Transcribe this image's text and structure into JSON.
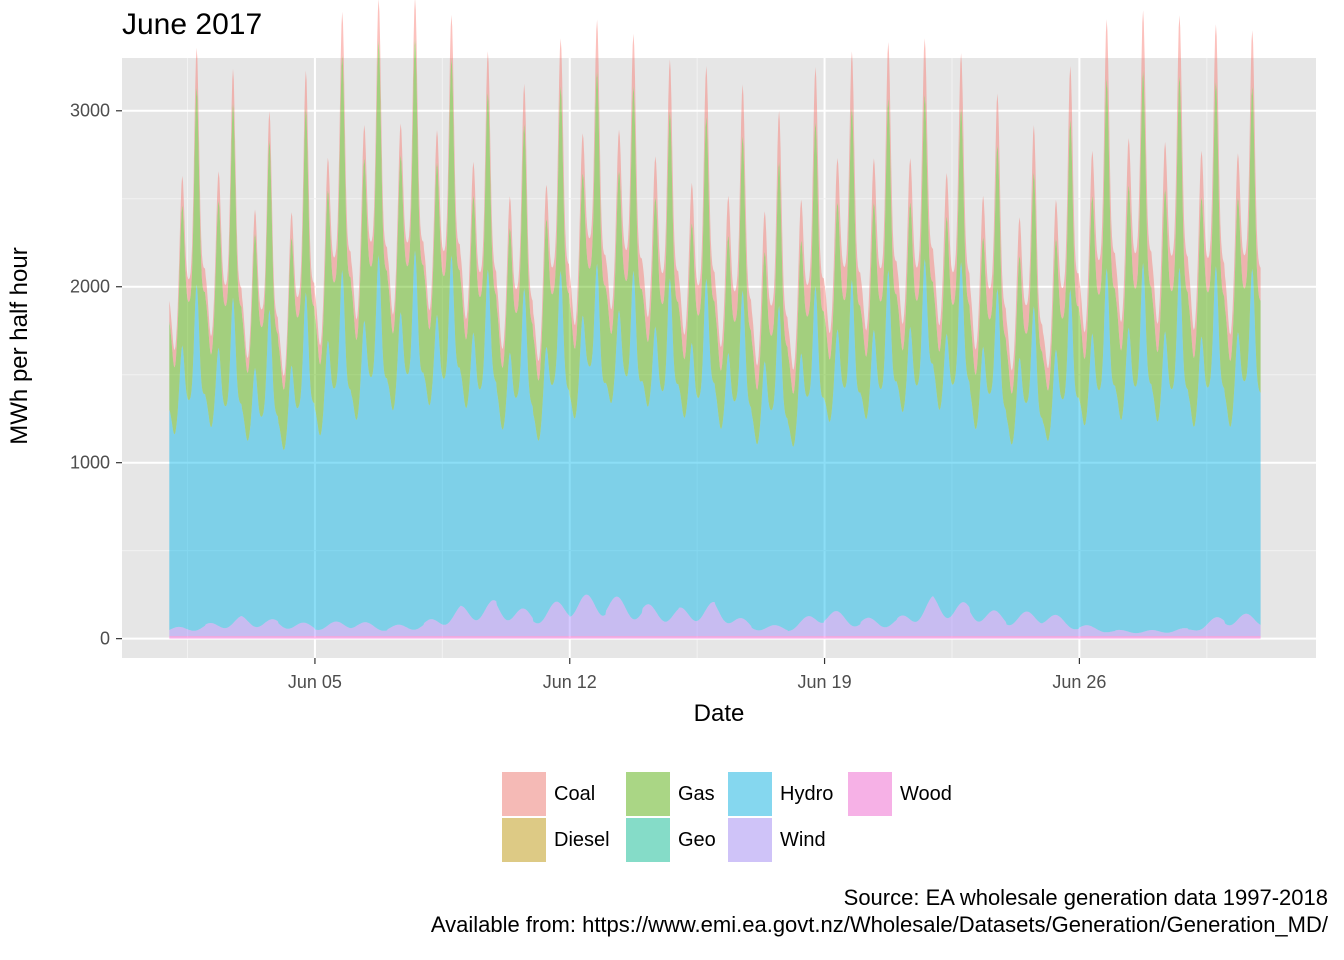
{
  "chart_data": {
    "type": "area",
    "stacked": true,
    "title": "June 2017",
    "xlabel": "Date",
    "ylabel": "MWh per half hour",
    "x_range": [
      "2017-06-01",
      "2017-06-30"
    ],
    "ylim": [
      0,
      3300
    ],
    "x_ticks": [
      {
        "date": "2017-06-05",
        "label": "Jun 05"
      },
      {
        "date": "2017-06-12",
        "label": "Jun 12"
      },
      {
        "date": "2017-06-19",
        "label": "Jun 19"
      },
      {
        "date": "2017-06-26",
        "label": "Jun 26"
      }
    ],
    "y_ticks": [
      0,
      1000,
      2000,
      3000
    ],
    "grid": true,
    "legend_position": "bottom",
    "series": [
      {
        "name": "Coal",
        "color": "#F8766D"
      },
      {
        "name": "Diesel",
        "color": "#C49A00"
      },
      {
        "name": "Gas",
        "color": "#53B400"
      },
      {
        "name": "Geo",
        "color": "#00C094"
      },
      {
        "name": "Hydro",
        "color": "#00B6EB"
      },
      {
        "name": "Wind",
        "color": "#A58AFF"
      },
      {
        "name": "Wood",
        "color": "#FB61D7"
      }
    ],
    "daily": [
      {
        "date": "2017-06-01",
        "Wood": 15,
        "Wind": 40,
        "Hydro": 1650,
        "Geo": 0,
        "Gas": 900,
        "Coal": 180,
        "Diesel": 0
      },
      {
        "date": "2017-06-02",
        "Wood": 15,
        "Wind": 60,
        "Hydro": 1700,
        "Geo": 0,
        "Gas": 1000,
        "Coal": 200,
        "Diesel": 0
      },
      {
        "date": "2017-06-03",
        "Wood": 15,
        "Wind": 100,
        "Hydro": 1550,
        "Geo": 0,
        "Gas": 950,
        "Coal": 160,
        "Diesel": 0
      },
      {
        "date": "2017-06-04",
        "Wood": 15,
        "Wind": 80,
        "Hydro": 1500,
        "Geo": 0,
        "Gas": 800,
        "Coal": 140,
        "Diesel": 0
      },
      {
        "date": "2017-06-05",
        "Wood": 15,
        "Wind": 60,
        "Hydro": 1650,
        "Geo": 0,
        "Gas": 950,
        "Coal": 200,
        "Diesel": 0
      },
      {
        "date": "2017-06-06",
        "Wood": 15,
        "Wind": 80,
        "Hydro": 1750,
        "Geo": 0,
        "Gas": 1100,
        "Coal": 220,
        "Diesel": 0
      },
      {
        "date": "2017-06-07",
        "Wood": 15,
        "Wind": 50,
        "Hydro": 1850,
        "Geo": 0,
        "Gas": 1050,
        "Coal": 200,
        "Diesel": 0
      },
      {
        "date": "2017-06-08",
        "Wood": 15,
        "Wind": 70,
        "Hydro": 1850,
        "Geo": 0,
        "Gas": 1050,
        "Coal": 200,
        "Diesel": 0
      },
      {
        "date": "2017-06-09",
        "Wood": 15,
        "Wind": 150,
        "Hydro": 1750,
        "Geo": 0,
        "Gas": 950,
        "Coal": 220,
        "Diesel": 0
      },
      {
        "date": "2017-06-10",
        "Wood": 15,
        "Wind": 180,
        "Hydro": 1600,
        "Geo": 0,
        "Gas": 850,
        "Coal": 200,
        "Diesel": 0
      },
      {
        "date": "2017-06-11",
        "Wood": 15,
        "Wind": 120,
        "Hydro": 1550,
        "Geo": 0,
        "Gas": 800,
        "Coal": 200,
        "Diesel": 0
      },
      {
        "date": "2017-06-12",
        "Wood": 15,
        "Wind": 200,
        "Hydro": 1650,
        "Geo": 0,
        "Gas": 950,
        "Coal": 250,
        "Diesel": 0
      },
      {
        "date": "2017-06-13",
        "Wood": 15,
        "Wind": 210,
        "Hydro": 1700,
        "Geo": 0,
        "Gas": 950,
        "Coal": 260,
        "Diesel": 0
      },
      {
        "date": "2017-06-14",
        "Wood": 15,
        "Wind": 160,
        "Hydro": 1700,
        "Geo": 0,
        "Gas": 900,
        "Coal": 260,
        "Diesel": 0
      },
      {
        "date": "2017-06-15",
        "Wood": 15,
        "Wind": 140,
        "Hydro": 1650,
        "Geo": 0,
        "Gas": 800,
        "Coal": 260,
        "Diesel": 0
      },
      {
        "date": "2017-06-16",
        "Wood": 15,
        "Wind": 170,
        "Hydro": 1600,
        "Geo": 0,
        "Gas": 800,
        "Coal": 250,
        "Diesel": 0
      },
      {
        "date": "2017-06-17",
        "Wood": 15,
        "Wind": 60,
        "Hydro": 1600,
        "Geo": 0,
        "Gas": 750,
        "Coal": 260,
        "Diesel": 0
      },
      {
        "date": "2017-06-18",
        "Wood": 15,
        "Wind": 50,
        "Hydro": 1550,
        "Geo": 0,
        "Gas": 700,
        "Coal": 250,
        "Diesel": 0
      },
      {
        "date": "2017-06-19",
        "Wood": 15,
        "Wind": 140,
        "Hydro": 1650,
        "Geo": 0,
        "Gas": 850,
        "Coal": 280,
        "Diesel": 0
      },
      {
        "date": "2017-06-20",
        "Wood": 15,
        "Wind": 90,
        "Hydro": 1700,
        "Geo": 0,
        "Gas": 850,
        "Coal": 280,
        "Diesel": 0
      },
      {
        "date": "2017-06-21",
        "Wood": 15,
        "Wind": 90,
        "Hydro": 1750,
        "Geo": 0,
        "Gas": 850,
        "Coal": 280,
        "Diesel": 0
      },
      {
        "date": "2017-06-22",
        "Wood": 15,
        "Wind": 200,
        "Hydro": 1700,
        "Geo": 0,
        "Gas": 800,
        "Coal": 280,
        "Diesel": 0
      },
      {
        "date": "2017-06-23",
        "Wood": 15,
        "Wind": 160,
        "Hydro": 1650,
        "Geo": 0,
        "Gas": 750,
        "Coal": 270,
        "Diesel": 0
      },
      {
        "date": "2017-06-24",
        "Wood": 15,
        "Wind": 110,
        "Hydro": 1550,
        "Geo": 0,
        "Gas": 700,
        "Coal": 250,
        "Diesel": 0
      },
      {
        "date": "2017-06-25",
        "Wood": 15,
        "Wind": 130,
        "Hydro": 1500,
        "Geo": 0,
        "Gas": 650,
        "Coal": 230,
        "Diesel": 0
      },
      {
        "date": "2017-06-26",
        "Wood": 15,
        "Wind": 60,
        "Hydro": 1700,
        "Geo": 0,
        "Gas": 900,
        "Coal": 280,
        "Diesel": 0
      },
      {
        "date": "2017-06-27",
        "Wood": 15,
        "Wind": 30,
        "Hydro": 1800,
        "Geo": 0,
        "Gas": 950,
        "Coal": 300,
        "Diesel": 0
      },
      {
        "date": "2017-06-28",
        "Wood": 15,
        "Wind": 30,
        "Hydro": 1800,
        "Geo": 0,
        "Gas": 950,
        "Coal": 300,
        "Diesel": 0
      },
      {
        "date": "2017-06-29",
        "Wood": 15,
        "Wind": 40,
        "Hydro": 1750,
        "Geo": 0,
        "Gas": 950,
        "Coal": 300,
        "Diesel": 0
      },
      {
        "date": "2017-06-30",
        "Wood": 15,
        "Wind": 110,
        "Hydro": 1700,
        "Geo": 0,
        "Gas": 900,
        "Coal": 280,
        "Diesel": 0
      }
    ],
    "caption": [
      "Source: EA wholesale generation data 1997-2018",
      "Available from: https://www.emi.ea.govt.nz/Wholesale/Datasets/Generation/Generation_MD/"
    ]
  }
}
